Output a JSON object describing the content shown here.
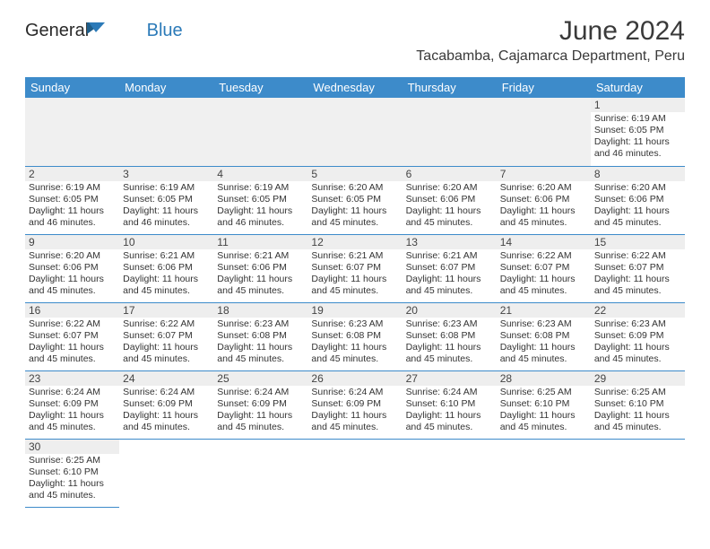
{
  "brand": {
    "word1": "General",
    "word2": "Blue"
  },
  "title": "June 2024",
  "location": "Tacabamba, Cajamarca Department, Peru",
  "dayNames": [
    "Sunday",
    "Monday",
    "Tuesday",
    "Wednesday",
    "Thursday",
    "Friday",
    "Saturday"
  ],
  "colors": {
    "header_blue": "#3d8bca",
    "row_grey": "#eeeeee",
    "blank_grey": "#f0f0f0",
    "text": "#333333",
    "logo_blue": "#2b7ab8"
  },
  "layout": {
    "startDayIndex": 6,
    "daysInMonth": 30,
    "cols": 7
  },
  "labels": {
    "sunrise": "Sunrise: ",
    "sunset": "Sunset: ",
    "daylight": "Daylight: "
  },
  "days": {
    "1": {
      "sunrise": "6:19 AM",
      "sunset": "6:05 PM",
      "daylight": "11 hours and 46 minutes."
    },
    "2": {
      "sunrise": "6:19 AM",
      "sunset": "6:05 PM",
      "daylight": "11 hours and 46 minutes."
    },
    "3": {
      "sunrise": "6:19 AM",
      "sunset": "6:05 PM",
      "daylight": "11 hours and 46 minutes."
    },
    "4": {
      "sunrise": "6:19 AM",
      "sunset": "6:05 PM",
      "daylight": "11 hours and 46 minutes."
    },
    "5": {
      "sunrise": "6:20 AM",
      "sunset": "6:05 PM",
      "daylight": "11 hours and 45 minutes."
    },
    "6": {
      "sunrise": "6:20 AM",
      "sunset": "6:06 PM",
      "daylight": "11 hours and 45 minutes."
    },
    "7": {
      "sunrise": "6:20 AM",
      "sunset": "6:06 PM",
      "daylight": "11 hours and 45 minutes."
    },
    "8": {
      "sunrise": "6:20 AM",
      "sunset": "6:06 PM",
      "daylight": "11 hours and 45 minutes."
    },
    "9": {
      "sunrise": "6:20 AM",
      "sunset": "6:06 PM",
      "daylight": "11 hours and 45 minutes."
    },
    "10": {
      "sunrise": "6:21 AM",
      "sunset": "6:06 PM",
      "daylight": "11 hours and 45 minutes."
    },
    "11": {
      "sunrise": "6:21 AM",
      "sunset": "6:06 PM",
      "daylight": "11 hours and 45 minutes."
    },
    "12": {
      "sunrise": "6:21 AM",
      "sunset": "6:07 PM",
      "daylight": "11 hours and 45 minutes."
    },
    "13": {
      "sunrise": "6:21 AM",
      "sunset": "6:07 PM",
      "daylight": "11 hours and 45 minutes."
    },
    "14": {
      "sunrise": "6:22 AM",
      "sunset": "6:07 PM",
      "daylight": "11 hours and 45 minutes."
    },
    "15": {
      "sunrise": "6:22 AM",
      "sunset": "6:07 PM",
      "daylight": "11 hours and 45 minutes."
    },
    "16": {
      "sunrise": "6:22 AM",
      "sunset": "6:07 PM",
      "daylight": "11 hours and 45 minutes."
    },
    "17": {
      "sunrise": "6:22 AM",
      "sunset": "6:07 PM",
      "daylight": "11 hours and 45 minutes."
    },
    "18": {
      "sunrise": "6:23 AM",
      "sunset": "6:08 PM",
      "daylight": "11 hours and 45 minutes."
    },
    "19": {
      "sunrise": "6:23 AM",
      "sunset": "6:08 PM",
      "daylight": "11 hours and 45 minutes."
    },
    "20": {
      "sunrise": "6:23 AM",
      "sunset": "6:08 PM",
      "daylight": "11 hours and 45 minutes."
    },
    "21": {
      "sunrise": "6:23 AM",
      "sunset": "6:08 PM",
      "daylight": "11 hours and 45 minutes."
    },
    "22": {
      "sunrise": "6:23 AM",
      "sunset": "6:09 PM",
      "daylight": "11 hours and 45 minutes."
    },
    "23": {
      "sunrise": "6:24 AM",
      "sunset": "6:09 PM",
      "daylight": "11 hours and 45 minutes."
    },
    "24": {
      "sunrise": "6:24 AM",
      "sunset": "6:09 PM",
      "daylight": "11 hours and 45 minutes."
    },
    "25": {
      "sunrise": "6:24 AM",
      "sunset": "6:09 PM",
      "daylight": "11 hours and 45 minutes."
    },
    "26": {
      "sunrise": "6:24 AM",
      "sunset": "6:09 PM",
      "daylight": "11 hours and 45 minutes."
    },
    "27": {
      "sunrise": "6:24 AM",
      "sunset": "6:10 PM",
      "daylight": "11 hours and 45 minutes."
    },
    "28": {
      "sunrise": "6:25 AM",
      "sunset": "6:10 PM",
      "daylight": "11 hours and 45 minutes."
    },
    "29": {
      "sunrise": "6:25 AM",
      "sunset": "6:10 PM",
      "daylight": "11 hours and 45 minutes."
    },
    "30": {
      "sunrise": "6:25 AM",
      "sunset": "6:10 PM",
      "daylight": "11 hours and 45 minutes."
    }
  }
}
